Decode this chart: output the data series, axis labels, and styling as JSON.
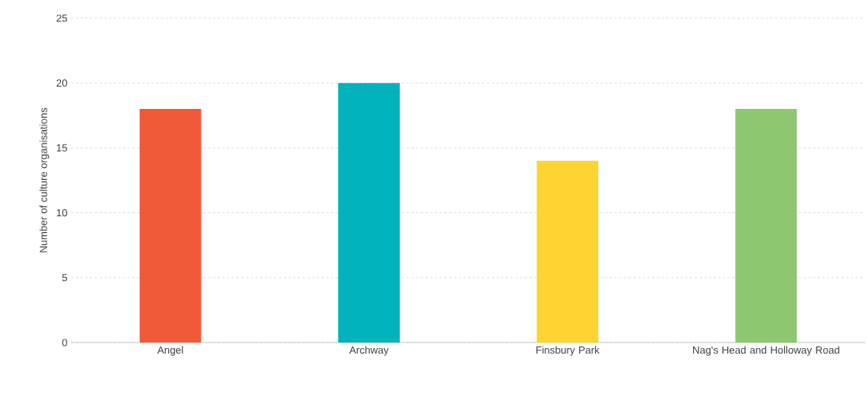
{
  "chart_data": {
    "type": "bar",
    "ylabel": "Number of culture organisations",
    "categories": [
      "Angel",
      "Archway",
      "Finsbury Park",
      "Nag's Head and Holloway Road"
    ],
    "values": [
      18,
      20,
      14,
      18
    ],
    "colors": [
      "#f05a38",
      "#00b2bc",
      "#fdd431",
      "#8dc870"
    ],
    "ylim": [
      0,
      25
    ],
    "yticks": [
      0,
      5,
      10,
      15,
      20,
      25
    ],
    "grid": "y"
  }
}
